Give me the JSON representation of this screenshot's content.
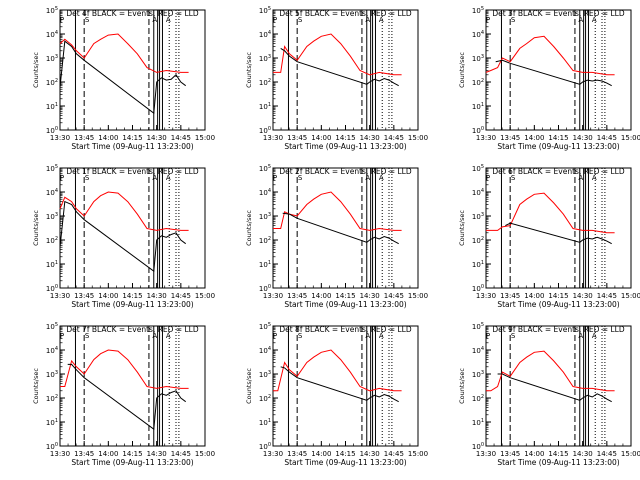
{
  "chart_data": {
    "type": "line",
    "x_tick_labels": [
      "13:30",
      "13:45",
      "14:00",
      "14:15",
      "14:30",
      "14:45",
      "15:00"
    ],
    "x_ticks_hours": [
      13.5,
      13.75,
      14.0,
      14.25,
      14.5,
      14.75,
      15.0
    ],
    "xlim": [
      13.5,
      15.0
    ],
    "ylim": [
      1,
      100000
    ],
    "yscale": "log",
    "y_tick_exponents": [
      0,
      1,
      2,
      3,
      4,
      5
    ],
    "ylabel": "Counts/sec",
    "xlabel": "Start Time (09-Aug-11 13:23:00)",
    "colors": {
      "events": "#000000",
      "lld": "#ff0000"
    },
    "top_markers": [
      "P",
      "S",
      "A",
      "A"
    ],
    "panels": [
      {
        "det": "4",
        "title": "Det 4f BLACK = Events, RED = LLD",
        "lld": {
          "x": [
            13.5,
            13.55,
            13.62,
            13.67,
            13.75,
            13.85,
            13.92,
            14.0,
            14.1,
            14.2,
            14.3,
            14.4,
            14.5,
            14.6,
            14.75,
            14.83
          ],
          "y": [
            4000,
            6000,
            3500,
            2000,
            1000,
            4000,
            6000,
            9000,
            10000,
            4000,
            1500,
            400,
            250,
            300,
            250,
            250
          ]
        },
        "events": {
          "x": [
            13.5,
            13.55,
            13.62,
            13.67,
            13.75,
            14.47,
            14.5,
            14.55,
            14.6,
            14.65,
            14.7,
            14.75,
            14.8
          ],
          "y": [
            60,
            5000,
            3000,
            1500,
            800,
            5,
            100,
            150,
            120,
            130,
            200,
            100,
            70
          ]
        },
        "vlines_solid": [
          13.66,
          14.47,
          14.51,
          14.53,
          14.56
        ],
        "vlines_dashed": [
          13.75,
          14.42
        ],
        "vlines_dotted": [
          14.63,
          14.7,
          14.73
        ]
      },
      {
        "det": "5",
        "title": "Det 5f BLACK = Events, RED = LLD",
        "lld": {
          "x": [
            13.5,
            13.58,
            13.62,
            13.67,
            13.75,
            13.85,
            13.92,
            14.0,
            14.1,
            14.2,
            14.3,
            14.4,
            14.5,
            14.6,
            14.75,
            14.83
          ],
          "y": [
            250,
            250,
            3000,
            1500,
            800,
            3000,
            5000,
            8000,
            10000,
            4000,
            1200,
            300,
            200,
            250,
            200,
            200
          ]
        },
        "events": {
          "x": [
            13.58,
            13.62,
            13.67,
            13.75,
            14.47,
            14.5,
            14.55,
            14.6,
            14.65,
            14.7,
            14.75,
            14.8
          ],
          "y": [
            2500,
            2000,
            1200,
            700,
            80,
            100,
            130,
            110,
            140,
            120,
            90,
            70
          ]
        },
        "vlines_solid": [
          13.66,
          14.47,
          14.51,
          14.53,
          14.56
        ],
        "vlines_dashed": [
          13.75,
          14.42
        ],
        "vlines_dotted": [
          14.63,
          14.7,
          14.73
        ]
      },
      {
        "det": "3",
        "title": "Det 3f BLACK = Events, RED = LLD",
        "lld": {
          "x": [
            13.5,
            13.55,
            13.62,
            13.67,
            13.75,
            13.85,
            13.92,
            14.0,
            14.1,
            14.2,
            14.3,
            14.4,
            14.5,
            14.6,
            14.75,
            14.83
          ],
          "y": [
            250,
            300,
            400,
            1000,
            700,
            2500,
            4000,
            7000,
            8000,
            3000,
            1000,
            300,
            250,
            250,
            200,
            200
          ]
        },
        "events": {
          "x": [
            13.6,
            13.67,
            13.75,
            14.47,
            14.5,
            14.55,
            14.6,
            14.65,
            14.7,
            14.75,
            14.8
          ],
          "y": [
            700,
            800,
            600,
            80,
            100,
            120,
            110,
            120,
            110,
            90,
            70
          ]
        },
        "vlines_solid": [
          13.66,
          14.47,
          14.51,
          14.53,
          14.56
        ],
        "vlines_dashed": [
          13.75,
          14.42
        ],
        "vlines_dotted": [
          14.63,
          14.7,
          14.73
        ]
      },
      {
        "det": "1",
        "title": "Det 1f BLACK = Events, RED = LLD",
        "lld": {
          "x": [
            13.5,
            13.55,
            13.62,
            13.67,
            13.75,
            13.85,
            13.92,
            14.0,
            14.1,
            14.2,
            14.3,
            14.4,
            14.5,
            14.6,
            14.75,
            14.83
          ],
          "y": [
            2000,
            6000,
            4000,
            2000,
            1000,
            4000,
            7000,
            10000,
            9000,
            4000,
            1200,
            300,
            250,
            300,
            250,
            250
          ]
        },
        "events": {
          "x": [
            13.5,
            13.55,
            13.62,
            13.67,
            13.75,
            14.47,
            14.5,
            14.55,
            14.6,
            14.65,
            14.7,
            14.75,
            14.8
          ],
          "y": [
            50,
            4000,
            3000,
            1500,
            700,
            5,
            100,
            150,
            130,
            170,
            200,
            100,
            70
          ]
        },
        "vlines_solid": [
          13.66,
          14.47,
          14.51,
          14.53,
          14.56
        ],
        "vlines_dashed": [
          13.75,
          14.42
        ],
        "vlines_dotted": [
          14.63,
          14.7,
          14.73
        ]
      },
      {
        "det": "2",
        "title": "Det 2f BLACK = Events, RED = LLD",
        "lld": {
          "x": [
            13.5,
            13.58,
            13.62,
            13.67,
            13.75,
            13.85,
            13.92,
            14.0,
            14.1,
            14.2,
            14.3,
            14.4,
            14.5,
            14.6,
            14.75,
            14.83
          ],
          "y": [
            300,
            300,
            1500,
            1200,
            1000,
            3000,
            5000,
            8000,
            10000,
            4000,
            1200,
            300,
            250,
            300,
            250,
            250
          ]
        },
        "events": {
          "x": [
            13.6,
            13.67,
            13.75,
            14.47,
            14.5,
            14.55,
            14.6,
            14.65,
            14.7,
            14.75,
            14.8
          ],
          "y": [
            1300,
            1200,
            800,
            80,
            100,
            130,
            110,
            140,
            120,
            90,
            70
          ]
        },
        "vlines_solid": [
          13.66,
          14.47,
          14.51,
          14.53,
          14.56
        ],
        "vlines_dashed": [
          13.75,
          14.42
        ],
        "vlines_dotted": [
          14.63,
          14.7,
          14.73
        ]
      },
      {
        "det": "6",
        "title": "Det 6f BLACK = Events, RED = LLD",
        "lld": {
          "x": [
            13.5,
            13.55,
            13.62,
            13.67,
            13.75,
            13.85,
            13.92,
            14.0,
            14.1,
            14.2,
            14.3,
            14.4,
            14.5,
            14.6,
            14.75,
            14.83
          ],
          "y": [
            250,
            250,
            250,
            350,
            400,
            3000,
            5000,
            8000,
            9000,
            3500,
            1200,
            300,
            250,
            250,
            200,
            200
          ]
        },
        "events": {
          "x": [
            13.7,
            13.75,
            14.47,
            14.5,
            14.55,
            14.6,
            14.65,
            14.7,
            14.75,
            14.8
          ],
          "y": [
            400,
            500,
            80,
            100,
            120,
            110,
            130,
            110,
            90,
            70
          ]
        },
        "vlines_solid": [
          13.66,
          14.47,
          14.51,
          14.53,
          14.56
        ],
        "vlines_dashed": [
          13.75,
          14.42
        ],
        "vlines_dotted": [
          14.63,
          14.7,
          14.73
        ]
      },
      {
        "det": "7",
        "title": "Det 7f BLACK = Events, RED = LLD",
        "lld": {
          "x": [
            13.5,
            13.55,
            13.62,
            13.67,
            13.75,
            13.85,
            13.92,
            14.0,
            14.1,
            14.2,
            14.3,
            14.4,
            14.5,
            14.6,
            14.75,
            14.83
          ],
          "y": [
            300,
            300,
            3500,
            2000,
            1000,
            4000,
            7000,
            10000,
            9000,
            4000,
            1200,
            300,
            250,
            300,
            250,
            250
          ]
        },
        "events": {
          "x": [
            13.58,
            13.62,
            13.67,
            13.75,
            14.47,
            14.5,
            14.55,
            14.6,
            14.65,
            14.7,
            14.75,
            14.8
          ],
          "y": [
            2500,
            2500,
            1500,
            700,
            5,
            100,
            150,
            130,
            170,
            200,
            100,
            70
          ]
        },
        "vlines_solid": [
          13.66,
          14.47,
          14.51,
          14.53,
          14.56
        ],
        "vlines_dashed": [
          13.75,
          14.42
        ],
        "vlines_dotted": [
          14.63,
          14.7,
          14.73
        ]
      },
      {
        "det": "8",
        "title": "Det 8f BLACK = Events, RED = LLD",
        "lld": {
          "x": [
            13.5,
            13.55,
            13.62,
            13.67,
            13.75,
            13.85,
            13.92,
            14.0,
            14.1,
            14.2,
            14.3,
            14.4,
            14.5,
            14.6,
            14.75,
            14.83
          ],
          "y": [
            200,
            200,
            3000,
            1500,
            800,
            3000,
            5000,
            8000,
            10000,
            4000,
            1200,
            300,
            200,
            250,
            200,
            200
          ]
        },
        "events": {
          "x": [
            13.58,
            13.62,
            13.67,
            13.75,
            14.47,
            14.5,
            14.55,
            14.6,
            14.65,
            14.7,
            14.75,
            14.8
          ],
          "y": [
            2000,
            1800,
            1200,
            700,
            80,
            100,
            130,
            110,
            140,
            120,
            90,
            70
          ]
        },
        "vlines_solid": [
          13.66,
          14.47,
          14.51,
          14.53,
          14.56
        ],
        "vlines_dashed": [
          13.75,
          14.42
        ],
        "vlines_dotted": [
          14.63,
          14.7,
          14.73
        ]
      },
      {
        "det": "9",
        "title": "Det 9f BLACK = Events, RED = LLD",
        "lld": {
          "x": [
            13.5,
            13.55,
            13.62,
            13.67,
            13.75,
            13.85,
            13.92,
            14.0,
            14.1,
            14.2,
            14.3,
            14.4,
            14.5,
            14.6,
            14.75,
            14.83
          ],
          "y": [
            200,
            200,
            300,
            1200,
            800,
            3000,
            5000,
            8000,
            9000,
            3500,
            1200,
            300,
            250,
            250,
            200,
            200
          ]
        },
        "events": {
          "x": [
            13.62,
            13.67,
            13.75,
            14.47,
            14.5,
            14.55,
            14.6,
            14.65,
            14.7,
            14.75,
            14.8
          ],
          "y": [
            1000,
            1000,
            700,
            80,
            100,
            130,
            110,
            150,
            120,
            90,
            70
          ]
        },
        "vlines_solid": [
          13.66,
          14.47,
          14.51,
          14.53,
          14.56
        ],
        "vlines_dashed": [
          13.75,
          14.42
        ],
        "vlines_dotted": [
          14.63,
          14.7,
          14.73
        ]
      }
    ]
  }
}
